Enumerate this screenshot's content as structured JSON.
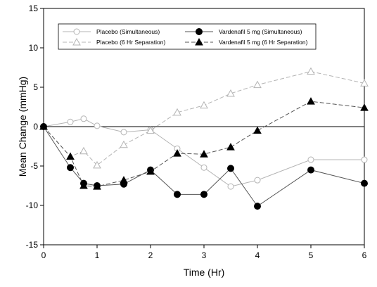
{
  "chart_data": {
    "type": "line",
    "xlabel": "Time (Hr)",
    "ylabel": "Mean Change (mmHg)",
    "xlim": [
      0,
      6
    ],
    "ylim": [
      -15,
      15
    ],
    "xticks": [
      0,
      1,
      2,
      3,
      4,
      5,
      6
    ],
    "yticks": [
      -15,
      -10,
      -5,
      0,
      5,
      10,
      15
    ],
    "reference_line_y": 0,
    "grid": false,
    "legend_position": "top",
    "series": [
      {
        "name": "Placebo (Simultaneous)",
        "marker": "circle-open",
        "line": "solid",
        "color": "#b4b4b4",
        "x": [
          0,
          0.5,
          0.75,
          1,
          1.5,
          2,
          2.5,
          3,
          3.5,
          4,
          5,
          6
        ],
        "y": [
          0,
          0.6,
          1.0,
          0.1,
          -0.7,
          -0.4,
          -2.8,
          -5.2,
          -7.6,
          -6.8,
          -4.2,
          -4.2
        ]
      },
      {
        "name": "Placebo (6 Hr Separation)",
        "marker": "triangle-open",
        "line": "dashed",
        "color": "#b4b4b4",
        "x": [
          0,
          0.5,
          0.75,
          1,
          1.5,
          2,
          2.5,
          3,
          3.5,
          4,
          5,
          6
        ],
        "y": [
          0,
          -3.8,
          -3.1,
          -4.9,
          -2.3,
          -0.5,
          1.8,
          2.7,
          4.2,
          5.3,
          7.0,
          5.5
        ]
      },
      {
        "name": "Vardenafil 5 mg (Simultaneous)",
        "marker": "circle-filled",
        "line": "solid",
        "color": "#000000",
        "x": [
          0,
          0.5,
          0.75,
          1,
          1.5,
          2,
          2.5,
          3,
          3.5,
          4,
          5,
          6
        ],
        "y": [
          0,
          -5.2,
          -7.2,
          -7.5,
          -7.3,
          -5.5,
          -8.6,
          -8.6,
          -5.3,
          -10.1,
          -5.5,
          -7.2
        ]
      },
      {
        "name": "Vardenafil 5 mg (6 Hr Separation)",
        "marker": "triangle-filled",
        "line": "dashed",
        "color": "#000000",
        "x": [
          0,
          0.5,
          0.75,
          1,
          1.5,
          2,
          2.5,
          3,
          3.5,
          4,
          5,
          6
        ],
        "y": [
          0,
          -3.8,
          -7.5,
          -7.6,
          -6.8,
          -5.7,
          -3.4,
          -3.5,
          -2.6,
          -0.5,
          3.2,
          2.4
        ]
      }
    ]
  }
}
